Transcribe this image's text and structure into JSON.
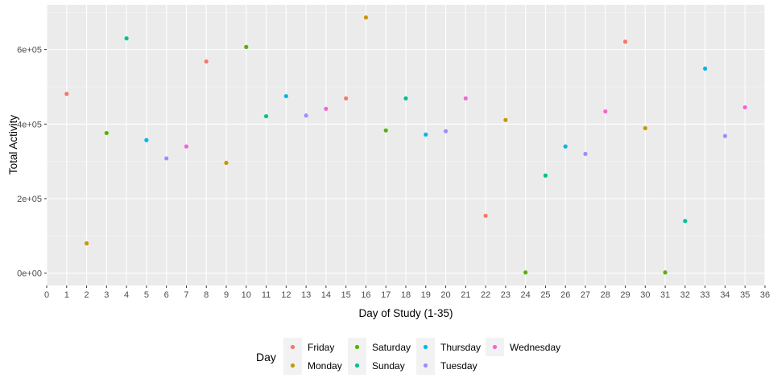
{
  "chart_data": {
    "type": "scatter",
    "xlabel": "Day of Study (1-35)",
    "ylabel": "Total Activity",
    "xlim": [
      0,
      36
    ],
    "ylim": [
      -33000,
      720000
    ],
    "x_ticks": [
      "0",
      "1",
      "2",
      "3",
      "4",
      "5",
      "6",
      "7",
      "8",
      "9",
      "10",
      "11",
      "12",
      "13",
      "14",
      "15",
      "16",
      "17",
      "18",
      "19",
      "20",
      "21",
      "22",
      "23",
      "24",
      "25",
      "26",
      "27",
      "28",
      "29",
      "30",
      "31",
      "32",
      "33",
      "34",
      "35",
      "36"
    ],
    "y_ticks": [
      {
        "value": 0,
        "label": "0e+00"
      },
      {
        "value": 200000,
        "label": "2e+05"
      },
      {
        "value": 400000,
        "label": "4e+05"
      },
      {
        "value": 600000,
        "label": "6e+05"
      }
    ],
    "grid": true,
    "legend": {
      "title": "Day",
      "position": "bottom",
      "entries": [
        "Friday",
        "Monday",
        "Saturday",
        "Sunday",
        "Thursday",
        "Tuesday",
        "Wednesday"
      ]
    },
    "series": [
      {
        "name": "Friday",
        "color": "#F8766D",
        "points": [
          [
            1,
            481000
          ],
          [
            8,
            568000
          ],
          [
            15,
            469000
          ],
          [
            22,
            154000
          ],
          [
            29,
            621000
          ]
        ]
      },
      {
        "name": "Monday",
        "color": "#C49A00",
        "points": [
          [
            2,
            80000
          ],
          [
            9,
            296000
          ],
          [
            16,
            686000
          ],
          [
            23,
            411000
          ],
          [
            30,
            389000
          ]
        ]
      },
      {
        "name": "Saturday",
        "color": "#53B400",
        "points": [
          [
            3,
            376000
          ],
          [
            10,
            607000
          ],
          [
            17,
            383000
          ],
          [
            24,
            2000
          ],
          [
            31,
            2000
          ]
        ]
      },
      {
        "name": "Sunday",
        "color": "#00C094",
        "points": [
          [
            4,
            630000
          ],
          [
            11,
            421000
          ],
          [
            18,
            469000
          ],
          [
            25,
            262000
          ],
          [
            32,
            140000
          ]
        ]
      },
      {
        "name": "Thursday",
        "color": "#00B6EB",
        "points": [
          [
            5,
            357000
          ],
          [
            12,
            475000
          ],
          [
            19,
            372000
          ],
          [
            26,
            340000
          ],
          [
            33,
            549000
          ]
        ]
      },
      {
        "name": "Tuesday",
        "color": "#A58AFF",
        "points": [
          [
            6,
            308000
          ],
          [
            13,
            423000
          ],
          [
            20,
            381000
          ],
          [
            27,
            320000
          ],
          [
            34,
            368000
          ]
        ]
      },
      {
        "name": "Wednesday",
        "color": "#FB61D7",
        "points": [
          [
            7,
            340000
          ],
          [
            14,
            441000
          ],
          [
            21,
            469000
          ],
          [
            28,
            434000
          ],
          [
            35,
            445000
          ]
        ]
      }
    ]
  }
}
